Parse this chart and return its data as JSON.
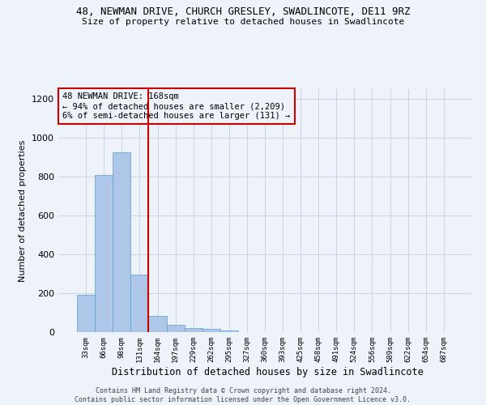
{
  "title": "48, NEWMAN DRIVE, CHURCH GRESLEY, SWADLINCOTE, DE11 9RZ",
  "subtitle": "Size of property relative to detached houses in Swadlincote",
  "xlabel": "Distribution of detached houses by size in Swadlincote",
  "ylabel": "Number of detached properties",
  "footer_line1": "Contains HM Land Registry data © Crown copyright and database right 2024.",
  "footer_line2": "Contains public sector information licensed under the Open Government Licence v3.0.",
  "bin_labels": [
    "33sqm",
    "66sqm",
    "98sqm",
    "131sqm",
    "164sqm",
    "197sqm",
    "229sqm",
    "262sqm",
    "295sqm",
    "327sqm",
    "360sqm",
    "393sqm",
    "425sqm",
    "458sqm",
    "491sqm",
    "524sqm",
    "556sqm",
    "589sqm",
    "622sqm",
    "654sqm",
    "687sqm"
  ],
  "bar_values": [
    193,
    810,
    927,
    295,
    85,
    36,
    20,
    15,
    10,
    0,
    0,
    0,
    0,
    0,
    0,
    0,
    0,
    0,
    0,
    0,
    0
  ],
  "bar_color": "#aec6e8",
  "bar_edge_color": "#5a9fd4",
  "background_color": "#eef2f9",
  "grid_color": "#c8d4e8",
  "vline_color": "#cc0000",
  "annotation_text": "48 NEWMAN DRIVE: 168sqm\n← 94% of detached houses are smaller (2,209)\n6% of semi-detached houses are larger (131) →",
  "annotation_box_color": "#cc0000",
  "ylim": [
    0,
    1250
  ],
  "yticks": [
    0,
    200,
    400,
    600,
    800,
    1000,
    1200
  ]
}
